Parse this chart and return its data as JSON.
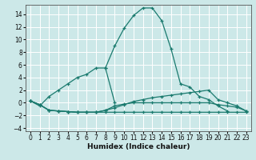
{
  "xlabel": "Humidex (Indice chaleur)",
  "background_color": "#cce8e8",
  "grid_color": "#ffffff",
  "line_color": "#1a7a6e",
  "xlim": [
    -0.5,
    23.5
  ],
  "ylim": [
    -4.5,
    15.5
  ],
  "yticks": [
    -4,
    -2,
    0,
    2,
    4,
    6,
    8,
    10,
    12,
    14
  ],
  "xticks": [
    0,
    1,
    2,
    3,
    4,
    5,
    6,
    7,
    8,
    9,
    10,
    11,
    12,
    13,
    14,
    15,
    16,
    17,
    18,
    19,
    20,
    21,
    22,
    23
  ],
  "series": [
    {
      "x": [
        0,
        1,
        2,
        3,
        4,
        5,
        6,
        7,
        8,
        9,
        10,
        11,
        12,
        13,
        14,
        15,
        16,
        17,
        18,
        19,
        20,
        21,
        22,
        23
      ],
      "y": [
        0.3,
        -0.5,
        1.0,
        2.0,
        3.0,
        4.0,
        4.5,
        5.5,
        5.5,
        9.0,
        11.8,
        13.8,
        15.0,
        15.0,
        13.0,
        8.5,
        3.0,
        2.5,
        1.0,
        0.5,
        -0.5,
        -1.3,
        null,
        null
      ]
    },
    {
      "x": [
        8,
        9,
        10
      ],
      "y": [
        5.5,
        0.0,
        null
      ]
    },
    {
      "x": [
        0,
        1,
        2,
        3,
        4,
        5,
        6,
        7,
        8,
        9,
        10,
        11,
        12,
        13,
        14,
        15,
        16,
        17,
        18,
        19,
        20,
        21,
        22,
        23
      ],
      "y": [
        0.3,
        -0.3,
        -1.2,
        -1.3,
        -1.4,
        -1.5,
        -1.5,
        -1.5,
        -1.2,
        -0.8,
        -0.3,
        0.2,
        0.5,
        0.8,
        1.0,
        1.2,
        1.4,
        1.6,
        1.8,
        2.0,
        0.5,
        0.0,
        -0.5,
        -1.3
      ]
    },
    {
      "x": [
        0,
        1,
        2,
        3,
        4,
        5,
        6,
        7,
        8,
        9,
        10,
        11,
        12,
        13,
        14,
        15,
        16,
        17,
        18,
        19,
        20,
        21,
        22,
        23
      ],
      "y": [
        0.3,
        -0.3,
        -1.2,
        -1.3,
        -1.4,
        -1.5,
        -1.5,
        -1.5,
        -1.2,
        -0.5,
        -0.2,
        0.0,
        0.0,
        0.0,
        0.0,
        0.0,
        0.0,
        0.0,
        0.0,
        0.0,
        -0.3,
        -0.5,
        -0.7,
        -1.3
      ]
    },
    {
      "x": [
        0,
        1,
        2,
        3,
        4,
        5,
        6,
        7,
        8,
        9,
        10,
        11,
        12,
        13,
        14,
        15,
        16,
        17,
        18,
        19,
        20,
        21,
        22,
        23
      ],
      "y": [
        0.3,
        -0.3,
        -1.2,
        -1.3,
        -1.4,
        -1.5,
        -1.5,
        -1.5,
        -1.5,
        -1.5,
        -1.5,
        -1.5,
        -1.5,
        -1.5,
        -1.5,
        -1.5,
        -1.5,
        -1.5,
        -1.5,
        -1.5,
        -1.5,
        -1.5,
        -1.5,
        -1.5
      ]
    }
  ]
}
